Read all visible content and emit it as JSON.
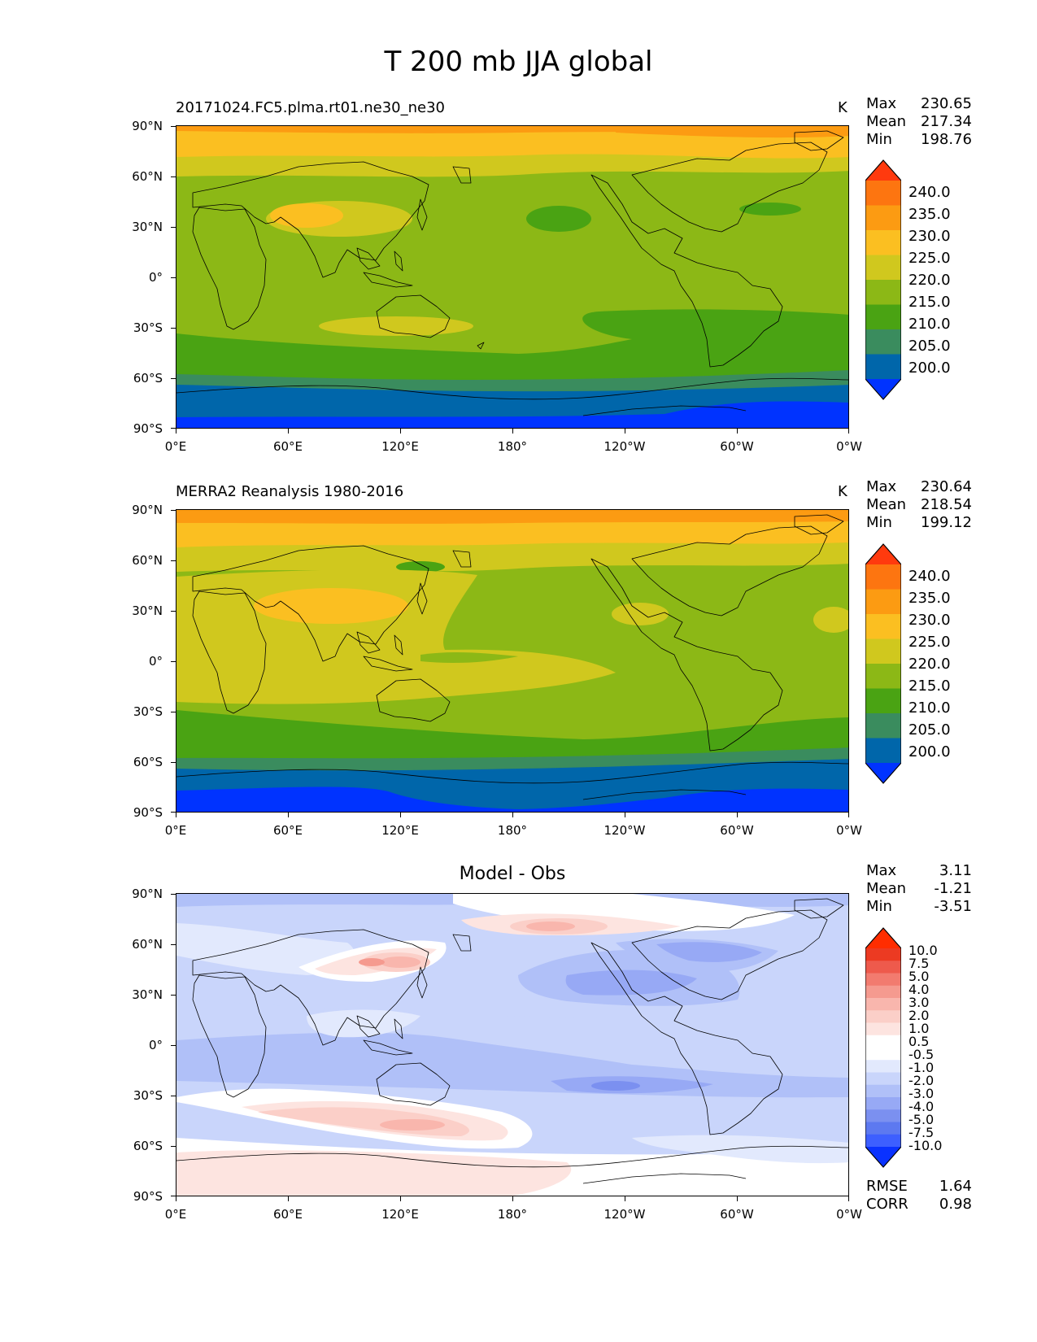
{
  "figure": {
    "title": "T 200 mb JJA global"
  },
  "axes": {
    "lat_labels": [
      "90°N",
      "60°N",
      "30°N",
      "0°",
      "30°S",
      "60°S",
      "90°S"
    ],
    "lon_labels": [
      "0°E",
      "60°E",
      "120°E",
      "180°",
      "120°W",
      "60°W",
      "0°W"
    ]
  },
  "colors": {
    "absolute": [
      "#0033ff",
      "#0066aa",
      "#3a8c5e",
      "#4aa313",
      "#8cb816",
      "#d0c81e",
      "#fbbf21",
      "#fc9b12",
      "#fd7510",
      "#ff3a0e"
    ],
    "diff": [
      "#0a32ff",
      "#3d5fff",
      "#5d79f0",
      "#7b90f0",
      "#97a9f5",
      "#b0c0f8",
      "#c9d5fb",
      "#e2e9fd",
      "#ffffff",
      "#ffffff",
      "#fde4e0",
      "#fbcfc8",
      "#f9b6ad",
      "#f59a8f",
      "#f27b6f",
      "#ee5a4c",
      "#ec3a22",
      "#ff2d00"
    ]
  },
  "panels": [
    {
      "name": "model",
      "title": "20171024.FC5.plma.rt01.ne30_ne30",
      "units": "K",
      "stats": {
        "max_label": "Max",
        "max": "230.65",
        "mean_label": "Mean",
        "mean": "217.34",
        "min_label": "Min",
        "min": "198.76"
      },
      "colorbar_labels": [
        "240.0",
        "235.0",
        "230.0",
        "225.0",
        "220.0",
        "215.0",
        "210.0",
        "205.0",
        "200.0"
      ]
    },
    {
      "name": "obs",
      "title": "MERRA2 Reanalysis 1980-2016",
      "units": "K",
      "stats": {
        "max_label": "Max",
        "max": "230.64",
        "mean_label": "Mean",
        "mean": "218.54",
        "min_label": "Min",
        "min": "199.12"
      },
      "colorbar_labels": [
        "240.0",
        "235.0",
        "230.0",
        "225.0",
        "220.0",
        "215.0",
        "210.0",
        "205.0",
        "200.0"
      ]
    },
    {
      "name": "diff",
      "title": "Model - Obs",
      "stats": {
        "max_label": "Max",
        "max": "3.11",
        "mean_label": "Mean",
        "mean": "-1.21",
        "min_label": "Min",
        "min": "-3.51"
      },
      "colorbar_labels": [
        "10.0",
        "7.5",
        "5.0",
        "4.0",
        "3.0",
        "2.0",
        "1.0",
        "0.5",
        "-0.5",
        "-1.0",
        "-2.0",
        "-3.0",
        "-4.0",
        "-5.0",
        "-7.5",
        "-10.0"
      ],
      "rmse_label": "RMSE",
      "rmse": "1.64",
      "corr_label": "CORR",
      "corr": "0.98"
    }
  ]
}
